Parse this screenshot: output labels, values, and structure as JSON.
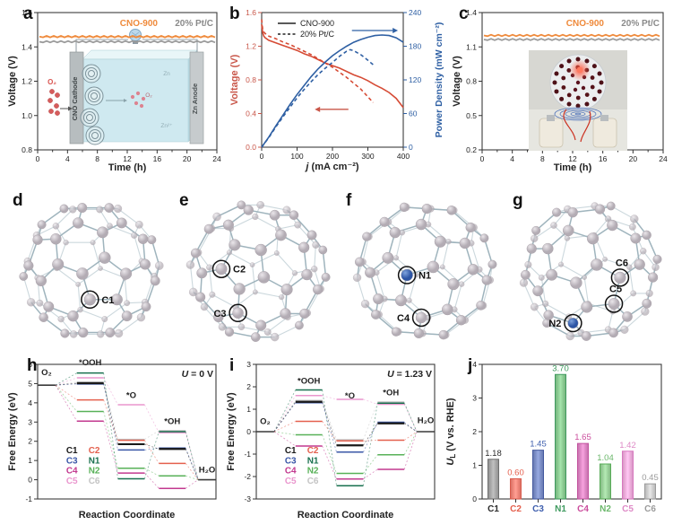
{
  "panels": {
    "a": {
      "letter": "a",
      "xlabel": "Time (h)",
      "ylabel": "Voltage (V)",
      "legend": [
        {
          "label": "CNO-900",
          "color": "#ef8a3b"
        },
        {
          "label": "20% Pt/C",
          "color": "#8a8a8a"
        }
      ],
      "inset": {
        "cathode_label": "CNO Cathode",
        "anode_label": "Zn Anode",
        "o2_outer_label": "O₂",
        "zn_label": "Zn",
        "o2_inner_label": "O₂",
        "zn_ion_label": "Zn²⁺"
      }
    },
    "b": {
      "letter": "b",
      "xlabel": "j (mA cm⁻²)",
      "ylabel_left": "Voltage (V)",
      "ylabel_right": "Power Density (mW cm⁻²)",
      "legend": [
        {
          "label": "CNO-900",
          "style": "solid"
        },
        {
          "label": "20% Pt/C",
          "style": "dashed"
        }
      ]
    },
    "c": {
      "letter": "c",
      "xlabel": "Time (h)",
      "ylabel": "Voltage (V)",
      "legend": [
        {
          "label": "CNO-900",
          "color": "#ef8a3b"
        },
        {
          "label": "20% Pt/C",
          "color": "#8a8a8a"
        }
      ]
    },
    "d": {
      "letter": "d",
      "sites": [
        {
          "label": "C1",
          "element": "C"
        }
      ]
    },
    "e": {
      "letter": "e",
      "sites": [
        {
          "label": "C2",
          "element": "C"
        },
        {
          "label": "C3",
          "element": "C"
        }
      ]
    },
    "f": {
      "letter": "f",
      "sites": [
        {
          "label": "N1",
          "element": "N"
        },
        {
          "label": "C4",
          "element": "C"
        }
      ]
    },
    "g": {
      "letter": "g",
      "sites": [
        {
          "label": "N2",
          "element": "N"
        },
        {
          "label": "C5",
          "element": "C"
        },
        {
          "label": "C6",
          "element": "C"
        }
      ]
    },
    "h": {
      "letter": "h",
      "xlabel": "Reaction Coordinate",
      "ylabel": "Free Energy (eV)",
      "condition": "U = 0 V"
    },
    "i": {
      "letter": "i",
      "xlabel": "Reaction Coordinate",
      "ylabel": "Free Energy (eV)",
      "condition": "U = 1.23 V"
    },
    "j": {
      "letter": "j",
      "ylabel": "U_L (V vs. RHE)"
    }
  },
  "series_colors": {
    "C1": "#1a1a1a",
    "C2": "#e4604e",
    "C3": "#3a57a7",
    "N1": "#19704f",
    "C4": "#c2398f",
    "N2": "#58b158",
    "C5": "#ea96ce",
    "C6": "#c4c4c4"
  },
  "chart_data": [
    {
      "panel": "a",
      "type": "line",
      "title": "",
      "xlabel": "Time (h)",
      "ylabel": "Voltage (V)",
      "xlim": [
        0,
        24
      ],
      "ylim": [
        0.8,
        1.6
      ],
      "xticks": [
        0,
        4,
        8,
        12,
        16,
        20,
        24
      ],
      "yticks": [
        0.8,
        1.0,
        1.2,
        1.4,
        1.6
      ],
      "series": [
        {
          "name": "CNO-900",
          "color": "#ef8a3b",
          "value": 1.46
        },
        {
          "name": "20% Pt/C",
          "color": "#9a9a9a",
          "value": 1.43
        }
      ]
    },
    {
      "panel": "b",
      "type": "line",
      "title": "",
      "xlabel": "j (mA cm⁻²)",
      "ylabel_left": "Voltage (V)",
      "ylabel_right": "Power Density (mW cm⁻²)",
      "xlim": [
        0,
        400
      ],
      "ylim_left": [
        0,
        1.6
      ],
      "ylim_right": [
        0,
        240
      ],
      "xticks": [
        0,
        100,
        200,
        300,
        400
      ],
      "yticks_left": [
        0.0,
        0.4,
        0.8,
        1.2,
        1.6
      ],
      "yticks_right": [
        0,
        60,
        120,
        180,
        240
      ],
      "series": [
        {
          "name": "CNO-900 voltage",
          "axis": "left",
          "style": "solid",
          "color": "#d64b35",
          "points": [
            [
              0,
              1.46
            ],
            [
              1,
              1.42
            ],
            [
              3,
              1.36
            ],
            [
              6,
              1.32
            ],
            [
              10,
              1.3
            ],
            [
              20,
              1.27
            ],
            [
              40,
              1.24
            ],
            [
              60,
              1.21
            ],
            [
              80,
              1.18
            ],
            [
              100,
              1.15
            ],
            [
              120,
              1.11
            ],
            [
              140,
              1.08
            ],
            [
              160,
              1.04
            ],
            [
              180,
              1.0
            ],
            [
              200,
              0.97
            ],
            [
              220,
              0.94
            ],
            [
              240,
              0.9
            ],
            [
              260,
              0.86
            ],
            [
              280,
              0.83
            ],
            [
              300,
              0.79
            ],
            [
              320,
              0.74
            ],
            [
              340,
              0.7
            ],
            [
              360,
              0.65
            ],
            [
              380,
              0.58
            ],
            [
              400,
              0.47
            ]
          ]
        },
        {
          "name": "20% Pt/C voltage",
          "axis": "left",
          "style": "dashed",
          "color": "#d64b35",
          "points": [
            [
              0,
              1.52
            ],
            [
              1,
              1.46
            ],
            [
              3,
              1.4
            ],
            [
              6,
              1.37
            ],
            [
              10,
              1.35
            ],
            [
              20,
              1.32
            ],
            [
              40,
              1.29
            ],
            [
              60,
              1.25
            ],
            [
              80,
              1.22
            ],
            [
              100,
              1.18
            ],
            [
              120,
              1.14
            ],
            [
              140,
              1.1
            ],
            [
              160,
              1.05
            ],
            [
              180,
              1.0
            ],
            [
              200,
              0.95
            ],
            [
              220,
              0.89
            ],
            [
              240,
              0.83
            ],
            [
              260,
              0.76
            ],
            [
              280,
              0.69
            ],
            [
              300,
              0.6
            ],
            [
              315,
              0.53
            ]
          ]
        },
        {
          "name": "CNO-900 power",
          "axis": "right",
          "style": "solid",
          "color": "#2e5fa3",
          "points": [
            [
              0,
              0
            ],
            [
              20,
              18
            ],
            [
              40,
              38
            ],
            [
              60,
              57
            ],
            [
              80,
              76
            ],
            [
              100,
              94
            ],
            [
              120,
              110
            ],
            [
              140,
              126
            ],
            [
              160,
              140
            ],
            [
              180,
              152
            ],
            [
              200,
              163
            ],
            [
              220,
              172
            ],
            [
              240,
              180
            ],
            [
              260,
              187
            ],
            [
              280,
              192
            ],
            [
              300,
              196
            ],
            [
              320,
              199
            ],
            [
              340,
              200
            ],
            [
              360,
              199
            ],
            [
              380,
              195
            ],
            [
              400,
              187
            ]
          ]
        },
        {
          "name": "20% Pt/C power",
          "axis": "right",
          "style": "dashed",
          "color": "#2e5fa3",
          "points": [
            [
              0,
              0
            ],
            [
              20,
              17
            ],
            [
              40,
              36
            ],
            [
              60,
              54
            ],
            [
              80,
              71
            ],
            [
              100,
              88
            ],
            [
              120,
              103
            ],
            [
              140,
              117
            ],
            [
              160,
              130
            ],
            [
              180,
              141
            ],
            [
              200,
              151
            ],
            [
              220,
              162
            ],
            [
              240,
              171
            ],
            [
              250,
              174
            ],
            [
              260,
              172
            ],
            [
              280,
              165
            ],
            [
              300,
              155
            ],
            [
              315,
              147
            ]
          ]
        }
      ]
    },
    {
      "panel": "c",
      "type": "line",
      "title": "",
      "xlabel": "Time (h)",
      "ylabel": "Voltage (V)",
      "xlim": [
        0,
        24
      ],
      "ylim": [
        0.2,
        1.4
      ],
      "xticks": [
        0,
        4,
        8,
        12,
        16,
        20,
        24
      ],
      "yticks": [
        0.2,
        0.5,
        0.8,
        1.1,
        1.4
      ],
      "series": [
        {
          "name": "CNO-900",
          "color": "#ef8a3b",
          "value": 1.2
        },
        {
          "name": "20% Pt/C",
          "color": "#9a9a9a",
          "value": 1.165
        }
      ]
    },
    {
      "panel": "h",
      "type": "energy-levels",
      "condition": "U = 0 V",
      "xlabel": "Reaction Coordinate",
      "ylabel": "Free Energy (eV)",
      "stages": [
        "O₂",
        "*OOH",
        "*O",
        "*OH",
        "H₂O"
      ],
      "ylim": [
        -1,
        6
      ],
      "yticks": [
        -1,
        0,
        1,
        2,
        3,
        4,
        5,
        6
      ],
      "stage_labels": [
        {
          "text": "O₂",
          "stage": 0,
          "y": 5.45
        },
        {
          "text": "*OOH",
          "stage": 1,
          "y": 5.95
        },
        {
          "text": "*O",
          "stage": 2,
          "y": 4.25
        },
        {
          "text": "*OH",
          "stage": 3,
          "y": 2.9
        },
        {
          "text": "H₂O",
          "stage": 4,
          "y": 0.38
        }
      ],
      "series": [
        {
          "name": "C1",
          "values": [
            4.92,
            5.02,
            1.85,
            1.6,
            0
          ]
        },
        {
          "name": "C2",
          "values": [
            4.92,
            4.15,
            2.05,
            0.85,
            0
          ]
        },
        {
          "name": "C3",
          "values": [
            4.92,
            4.98,
            1.55,
            1.65,
            0
          ]
        },
        {
          "name": "N1",
          "values": [
            4.92,
            5.55,
            0.05,
            2.5,
            0
          ]
        },
        {
          "name": "C4",
          "values": [
            4.92,
            3.05,
            0.35,
            -0.45,
            0
          ]
        },
        {
          "name": "N2",
          "values": [
            4.92,
            3.55,
            0.6,
            0.2,
            0
          ]
        },
        {
          "name": "C5",
          "values": [
            4.92,
            5.3,
            3.9,
            2.45,
            0
          ]
        },
        {
          "name": "C6",
          "values": [
            4.92,
            5.08,
            2.1,
            2.55,
            0
          ]
        }
      ]
    },
    {
      "panel": "i",
      "type": "energy-levels",
      "condition": "U = 1.23 V",
      "xlabel": "Reaction Coordinate",
      "ylabel": "Free Energy (eV)",
      "stages": [
        "O₂",
        "*OOH",
        "*O",
        "*OH",
        "H₂O"
      ],
      "ylim": [
        -3,
        3
      ],
      "yticks": [
        -3,
        -2,
        -1,
        0,
        1,
        2,
        3
      ],
      "stage_labels": [
        {
          "text": "O₂",
          "stage": 0,
          "y": 0.35
        },
        {
          "text": "*OOH",
          "stage": 1,
          "y": 2.15
        },
        {
          "text": "*O",
          "stage": 2,
          "y": 1.48
        },
        {
          "text": "*OH",
          "stage": 3,
          "y": 1.62
        },
        {
          "text": "H₂O",
          "stage": 4,
          "y": 0.38
        }
      ],
      "series": [
        {
          "name": "C1",
          "values": [
            0,
            1.33,
            -0.61,
            0.37,
            0
          ]
        },
        {
          "name": "C2",
          "values": [
            0,
            0.46,
            -0.41,
            -0.38,
            0
          ]
        },
        {
          "name": "C3",
          "values": [
            0,
            1.29,
            -0.91,
            0.42,
            0
          ]
        },
        {
          "name": "N1",
          "values": [
            0,
            1.86,
            -2.41,
            1.27,
            0
          ]
        },
        {
          "name": "C4",
          "values": [
            0,
            -0.64,
            -2.11,
            -1.68,
            0
          ]
        },
        {
          "name": "N2",
          "values": [
            0,
            -0.14,
            -1.86,
            -1.03,
            0
          ]
        },
        {
          "name": "C5",
          "values": [
            0,
            1.61,
            1.44,
            1.22,
            0
          ]
        },
        {
          "name": "C6",
          "values": [
            0,
            1.39,
            -0.36,
            1.32,
            0
          ]
        }
      ]
    },
    {
      "panel": "j",
      "type": "bar",
      "ylabel": "U_L (V vs. RHE)",
      "categories": [
        "C1",
        "C2",
        "C3",
        "N1",
        "C4",
        "N2",
        "C5",
        "C6"
      ],
      "values": [
        1.18,
        0.6,
        1.45,
        3.7,
        1.65,
        1.04,
        1.42,
        0.45
      ],
      "ylim": [
        0,
        4
      ],
      "yticks": [
        0,
        1,
        2,
        3,
        4
      ],
      "bar_fills": [
        "#ababab",
        "#f28a7e",
        "#8193cb",
        "#8fce96",
        "#e18cc8",
        "#9ed49e",
        "#f0b1de",
        "#d2d2d2"
      ],
      "bar_edges": [
        "#6f6f6f",
        "#d85b4d",
        "#44599f",
        "#3f9a5f",
        "#c2529e",
        "#57ab57",
        "#d877bf",
        "#9b9b9b"
      ],
      "label_colors": [
        "#2b2b2b",
        "#e45f4c",
        "#3f5fae",
        "#3f9a5f",
        "#cb4d9d",
        "#6cb86c",
        "#de8ac6",
        "#9b9b9b"
      ]
    }
  ]
}
